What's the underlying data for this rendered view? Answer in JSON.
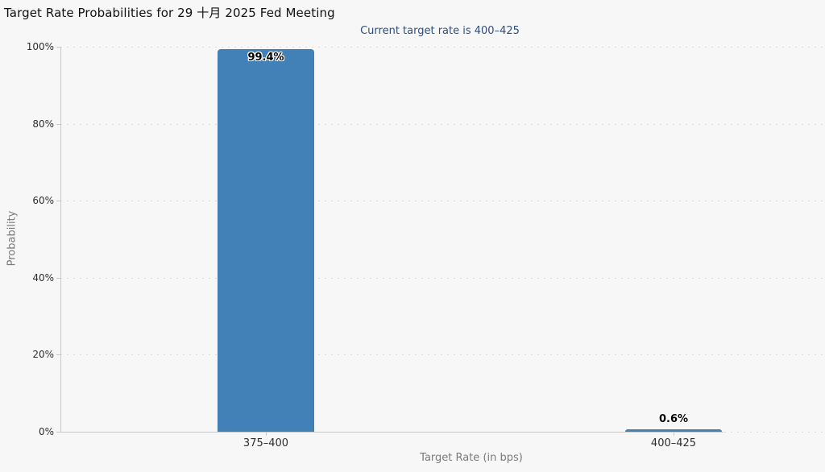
{
  "chart_data": {
    "type": "bar",
    "title": "Target Rate Probabilities for 29 十月 2025 Fed Meeting",
    "subtitle": "Current target rate is 400–425",
    "categories": [
      "375–400",
      "400–425"
    ],
    "values": [
      99.4,
      0.6
    ],
    "value_labels": [
      "99.4%",
      "0.6%"
    ],
    "xlabel": "Target Rate (in bps)",
    "ylabel": "Probability",
    "ylim": [
      0,
      100
    ],
    "y_ticks": [
      0,
      20,
      40,
      60,
      80,
      100
    ],
    "y_tick_labels_top_to_bottom": [
      "100%",
      "80%",
      "60%",
      "40%",
      "20%",
      "0%"
    ],
    "grid": "dotted horizontal gridlines at 20% intervals",
    "legend": "none",
    "bar_color": "#4281b7",
    "subtitle_color": "#2f4f7d",
    "background_color": "#f7f7f7"
  }
}
